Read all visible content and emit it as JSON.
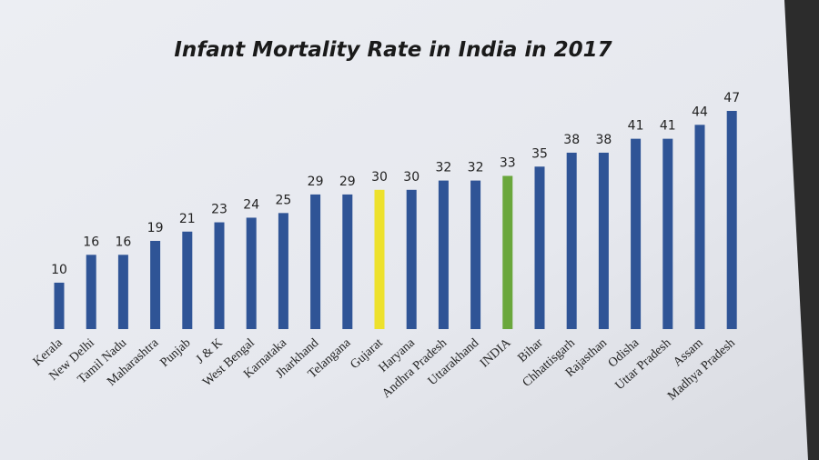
{
  "chart_data": {
    "type": "bar",
    "title": "Infant Mortality Rate in India in 2017",
    "categories": [
      "Kerala",
      "New Delhi",
      "Tamil Nadu",
      "Maharashtra",
      "Punjab",
      "J & K",
      "West Bengal",
      "Karnataka",
      "Jharkhand",
      "Telangana",
      "Gujarat",
      "Haryana",
      "Andhra Pradesh",
      "Uttarakhand",
      "INDIA",
      "Bihar",
      "Chhattisgarh",
      "Rajasthan",
      "Odisha",
      "Uttar Pradesh",
      "Assam",
      "Madhya Pradesh"
    ],
    "values": [
      10,
      16,
      16,
      19,
      21,
      23,
      24,
      25,
      29,
      29,
      30,
      30,
      32,
      32,
      33,
      35,
      38,
      38,
      41,
      41,
      44,
      47
    ],
    "colors": [
      "#2f5496",
      "#2f5496",
      "#2f5496",
      "#2f5496",
      "#2f5496",
      "#2f5496",
      "#2f5496",
      "#2f5496",
      "#2f5496",
      "#2f5496",
      "#ede12c",
      "#2f5496",
      "#2f5496",
      "#2f5496",
      "#6aa73c",
      "#2f5496",
      "#2f5496",
      "#2f5496",
      "#2f5496",
      "#2f5496",
      "#2f5496",
      "#2f5496"
    ]
  }
}
